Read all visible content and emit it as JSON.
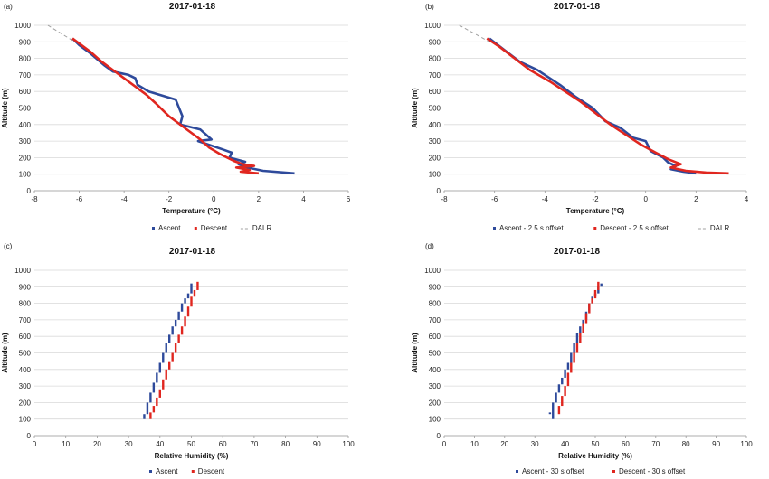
{
  "chart_data": [
    {
      "type": "line",
      "panel_label": "(a)",
      "title": "2017-01-18",
      "xlabel": "Temperature (°C)",
      "ylabel": "Altitude (m)",
      "xlim": [
        -8,
        6
      ],
      "ylim": [
        0,
        1000
      ],
      "xticks": [
        -8,
        -6,
        -4,
        -2,
        0,
        2,
        4,
        6
      ],
      "yticks": [
        0,
        100,
        200,
        300,
        400,
        500,
        600,
        700,
        800,
        900,
        1000
      ],
      "grid": true,
      "legend": "bottom",
      "series": [
        {
          "name": "Ascent",
          "color": "#2e4a9b",
          "style": "solid",
          "x": [
            -6.3,
            -6.0,
            -5.5,
            -4.9,
            -4.5,
            -4.3,
            -3.8,
            -3.5,
            -3.4,
            -2.9,
            -1.7,
            -1.4,
            -1.5,
            -0.6,
            -0.1,
            -0.7,
            0.4,
            0.8,
            0.7,
            1.4,
            1.1,
            1.5,
            2.2,
            3.6
          ],
          "y": [
            920,
            880,
            830,
            760,
            720,
            715,
            700,
            680,
            640,
            600,
            550,
            450,
            400,
            370,
            310,
            300,
            250,
            230,
            200,
            175,
            160,
            140,
            120,
            105
          ]
        },
        {
          "name": "Descent",
          "color": "#e0261f",
          "style": "solid",
          "x": [
            -6.3,
            -5.5,
            -5.0,
            -4.2,
            -3.6,
            -3.0,
            -2.6,
            -2.0,
            -1.3,
            -0.6,
            -0.2,
            0.3,
            0.9,
            1.3,
            1.8,
            1.0,
            1.6,
            1.2,
            2.0
          ],
          "y": [
            920,
            840,
            780,
            700,
            640,
            580,
            530,
            450,
            380,
            310,
            260,
            220,
            180,
            160,
            150,
            140,
            125,
            115,
            105
          ]
        },
        {
          "name": "DALR",
          "color": "#a0a0a0",
          "style": "dashed",
          "x": [
            -7.4,
            -6.2
          ],
          "y": [
            1000,
            900
          ]
        }
      ]
    },
    {
      "type": "line",
      "panel_label": "(b)",
      "title": "2017-01-18",
      "xlabel": "Temperature (°C)",
      "ylabel": "Altitude (m)",
      "xlim": [
        -8,
        4
      ],
      "ylim": [
        0,
        1000
      ],
      "xticks": [
        -8,
        -6,
        -4,
        -2,
        0,
        2,
        4
      ],
      "yticks": [
        0,
        100,
        200,
        300,
        400,
        500,
        600,
        700,
        800,
        900,
        1000
      ],
      "grid": true,
      "legend": "bottom",
      "series": [
        {
          "name": "Ascent - 2.5 s offset",
          "color": "#2e4a9b",
          "style": "solid",
          "x": [
            -6.2,
            -5.6,
            -5.0,
            -4.3,
            -4.0,
            -3.4,
            -2.8,
            -2.1,
            -1.6,
            -1.0,
            -0.5,
            0.0,
            0.2,
            0.7,
            0.9,
            1.2,
            1.0,
            1.5,
            2.0
          ],
          "y": [
            920,
            850,
            780,
            730,
            700,
            640,
            570,
            500,
            420,
            380,
            320,
            300,
            240,
            200,
            170,
            150,
            130,
            115,
            105
          ]
        },
        {
          "name": "Descent - 2.5 s offset",
          "color": "#e0261f",
          "style": "solid",
          "x": [
            -6.3,
            -5.8,
            -5.2,
            -4.6,
            -3.8,
            -3.2,
            -2.6,
            -2.0,
            -1.4,
            -0.8,
            -0.2,
            0.4,
            0.9,
            1.4,
            1.0,
            1.6,
            2.4,
            3.3
          ],
          "y": [
            920,
            870,
            800,
            730,
            660,
            600,
            540,
            470,
            400,
            340,
            280,
            230,
            190,
            160,
            140,
            120,
            110,
            105
          ]
        },
        {
          "name": "DALR",
          "color": "#a0a0a0",
          "style": "dashed",
          "x": [
            -7.4,
            -6.2
          ],
          "y": [
            1000,
            900
          ]
        }
      ]
    },
    {
      "type": "scatter",
      "panel_label": "(c)",
      "title": "2017-01-18",
      "xlabel": "Relative Humidity (%)",
      "ylabel": "Altitude (m)",
      "xlim": [
        0,
        100
      ],
      "ylim": [
        0,
        1000
      ],
      "xticks": [
        0,
        10,
        20,
        30,
        40,
        50,
        60,
        70,
        80,
        90,
        100
      ],
      "yticks": [
        0,
        100,
        200,
        300,
        400,
        500,
        600,
        700,
        800,
        900,
        1000
      ],
      "grid": true,
      "legend": "bottom",
      "series": [
        {
          "name": "Ascent",
          "color": "#2e4a9b",
          "x": [
            35,
            36,
            37,
            38,
            39,
            40,
            41,
            42,
            43,
            44,
            45,
            46,
            47,
            48,
            49,
            50
          ],
          "y": [
            [
              100,
              130
            ],
            [
              130,
              200
            ],
            [
              200,
              260
            ],
            [
              260,
              320
            ],
            [
              320,
              380
            ],
            [
              380,
              440
            ],
            [
              440,
              500
            ],
            [
              500,
              560
            ],
            [
              560,
              610
            ],
            [
              610,
              660
            ],
            [
              660,
              700
            ],
            [
              700,
              750
            ],
            [
              750,
              800
            ],
            [
              800,
              830
            ],
            [
              830,
              860
            ],
            [
              860,
              920
            ]
          ]
        },
        {
          "name": "Descent",
          "color": "#e0261f",
          "x": [
            37,
            38,
            39,
            40,
            41,
            42,
            43,
            44,
            45,
            46,
            47,
            48,
            49,
            50,
            51,
            52
          ],
          "y": [
            [
              100,
              140
            ],
            [
              140,
              180
            ],
            [
              180,
              230
            ],
            [
              230,
              280
            ],
            [
              280,
              340
            ],
            [
              340,
              400
            ],
            [
              400,
              450
            ],
            [
              450,
              500
            ],
            [
              500,
              560
            ],
            [
              560,
              610
            ],
            [
              610,
              660
            ],
            [
              660,
              720
            ],
            [
              720,
              780
            ],
            [
              780,
              840
            ],
            [
              840,
              880
            ],
            [
              880,
              930
            ]
          ]
        }
      ]
    },
    {
      "type": "scatter",
      "panel_label": "(d)",
      "title": "2017-01-18",
      "xlabel": "Relative Humidity (%)",
      "ylabel": "Altitude (m)",
      "xlim": [
        0,
        100
      ],
      "ylim": [
        0,
        1000
      ],
      "xticks": [
        0,
        10,
        20,
        30,
        40,
        50,
        60,
        70,
        80,
        90,
        100
      ],
      "yticks": [
        0,
        100,
        200,
        300,
        400,
        500,
        600,
        700,
        800,
        900,
        1000
      ],
      "grid": true,
      "legend": "bottom",
      "series": [
        {
          "name": "Ascent - 30 s offset",
          "color": "#2e4a9b",
          "x": [
            35,
            36,
            37,
            38,
            39,
            40,
            41,
            42,
            43,
            44,
            45,
            46,
            47,
            48,
            49,
            50,
            51,
            52
          ],
          "y": [
            [
              130,
              140
            ],
            [
              100,
              200
            ],
            [
              200,
              260
            ],
            [
              260,
              310
            ],
            [
              310,
              350
            ],
            [
              350,
              400
            ],
            [
              400,
              440
            ],
            [
              440,
              500
            ],
            [
              500,
              560
            ],
            [
              560,
              620
            ],
            [
              620,
              660
            ],
            [
              660,
              700
            ],
            [
              700,
              750
            ],
            [
              750,
              800
            ],
            [
              800,
              840
            ],
            [
              840,
              860
            ],
            [
              860,
              900
            ],
            [
              900,
              920
            ]
          ]
        },
        {
          "name": "Descent - 30 s offset",
          "color": "#e0261f",
          "x": [
            38,
            39,
            40,
            41,
            42,
            43,
            44,
            45,
            46,
            47,
            48,
            49,
            50,
            51
          ],
          "y": [
            [
              130,
              180
            ],
            [
              180,
              240
            ],
            [
              240,
              300
            ],
            [
              300,
              380
            ],
            [
              380,
              440
            ],
            [
              440,
              500
            ],
            [
              500,
              560
            ],
            [
              560,
              620
            ],
            [
              620,
              680
            ],
            [
              680,
              740
            ],
            [
              740,
              800
            ],
            [
              800,
              830
            ],
            [
              830,
              880
            ],
            [
              880,
              930
            ]
          ]
        }
      ]
    }
  ]
}
